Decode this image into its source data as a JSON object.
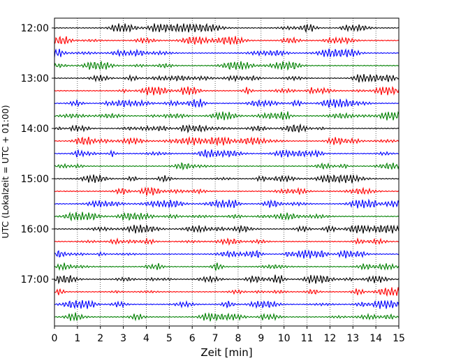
{
  "chart_data": {
    "type": "line",
    "title": "",
    "xlabel": "Zeit  [min]",
    "ylabel": "UTC (Lokalzeit = UTC + 01:00)",
    "xlim": [
      0,
      15
    ],
    "x_ticks": [
      "0",
      "1",
      "2",
      "3",
      "4",
      "5",
      "6",
      "7",
      "8",
      "9",
      "10",
      "11",
      "12",
      "13",
      "14",
      "15"
    ],
    "y_ticks": [
      "12:00",
      "13:00",
      "14:00",
      "15:00",
      "16:00",
      "17:00"
    ],
    "grid": "vertical dotted at every minute",
    "traces_per_hour": 4,
    "trace_interval_minutes": 15,
    "trace_colors": [
      "#000000",
      "#ff0000",
      "#0000ff",
      "#008000"
    ],
    "traces": [
      {
        "start": "12:00",
        "color_index": 0
      },
      {
        "start": "12:15",
        "color_index": 1
      },
      {
        "start": "12:30",
        "color_index": 2
      },
      {
        "start": "12:45",
        "color_index": 3
      },
      {
        "start": "13:00",
        "color_index": 0
      },
      {
        "start": "13:15",
        "color_index": 1
      },
      {
        "start": "13:30",
        "color_index": 2
      },
      {
        "start": "13:45",
        "color_index": 3
      },
      {
        "start": "14:00",
        "color_index": 0
      },
      {
        "start": "14:15",
        "color_index": 1
      },
      {
        "start": "14:30",
        "color_index": 2
      },
      {
        "start": "14:45",
        "color_index": 3
      },
      {
        "start": "15:00",
        "color_index": 0
      },
      {
        "start": "15:15",
        "color_index": 1
      },
      {
        "start": "15:30",
        "color_index": 2
      },
      {
        "start": "15:45",
        "color_index": 3
      },
      {
        "start": "16:00",
        "color_index": 0
      },
      {
        "start": "16:15",
        "color_index": 1
      },
      {
        "start": "16:30",
        "color_index": 2
      },
      {
        "start": "16:45",
        "color_index": 3
      },
      {
        "start": "17:00",
        "color_index": 0
      },
      {
        "start": "17:15",
        "color_index": 1
      },
      {
        "start": "17:30",
        "color_index": 2
      },
      {
        "start": "17:45",
        "color_index": 3
      }
    ]
  }
}
